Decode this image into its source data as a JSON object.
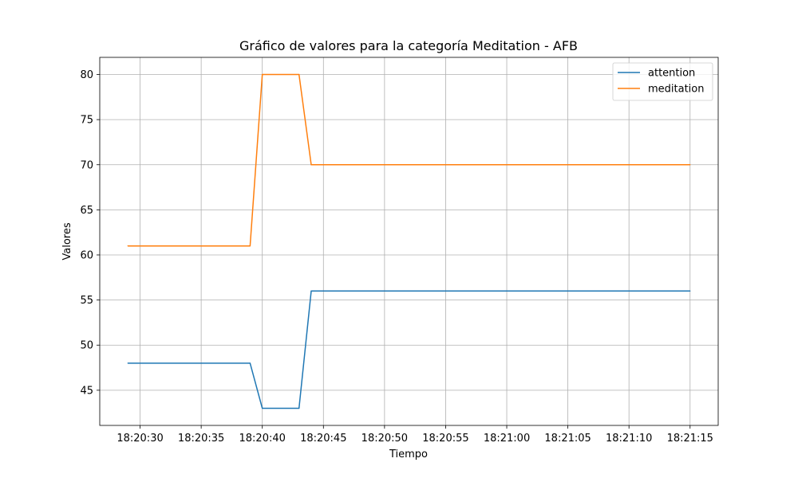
{
  "chart_data": {
    "type": "line",
    "title": "Gráfico de valores para la categoría Meditation - AFB",
    "xlabel": "Tiempo",
    "ylabel": "Valores",
    "x": [
      "18:20:29",
      "18:20:39",
      "18:20:40",
      "18:20:43",
      "18:20:44",
      "18:21:15"
    ],
    "x_ticks": [
      "18:20:30",
      "18:20:35",
      "18:20:40",
      "18:20:45",
      "18:20:50",
      "18:20:55",
      "18:21:00",
      "18:21:05",
      "18:21:10",
      "18:21:15"
    ],
    "y_ticks": [
      45,
      50,
      55,
      60,
      65,
      70,
      75,
      80
    ],
    "ylim": [
      41.1,
      81.9
    ],
    "xlim": [
      "18:20:26.7",
      "18:21:17.3"
    ],
    "grid": true,
    "legend_position": "top-right",
    "series": [
      {
        "name": "attention",
        "color": "#1f77b4",
        "values": [
          48,
          48,
          43,
          43,
          56,
          56
        ]
      },
      {
        "name": "meditation",
        "color": "#ff7f0e",
        "values": [
          61,
          61,
          80,
          80,
          70,
          70
        ]
      }
    ]
  }
}
